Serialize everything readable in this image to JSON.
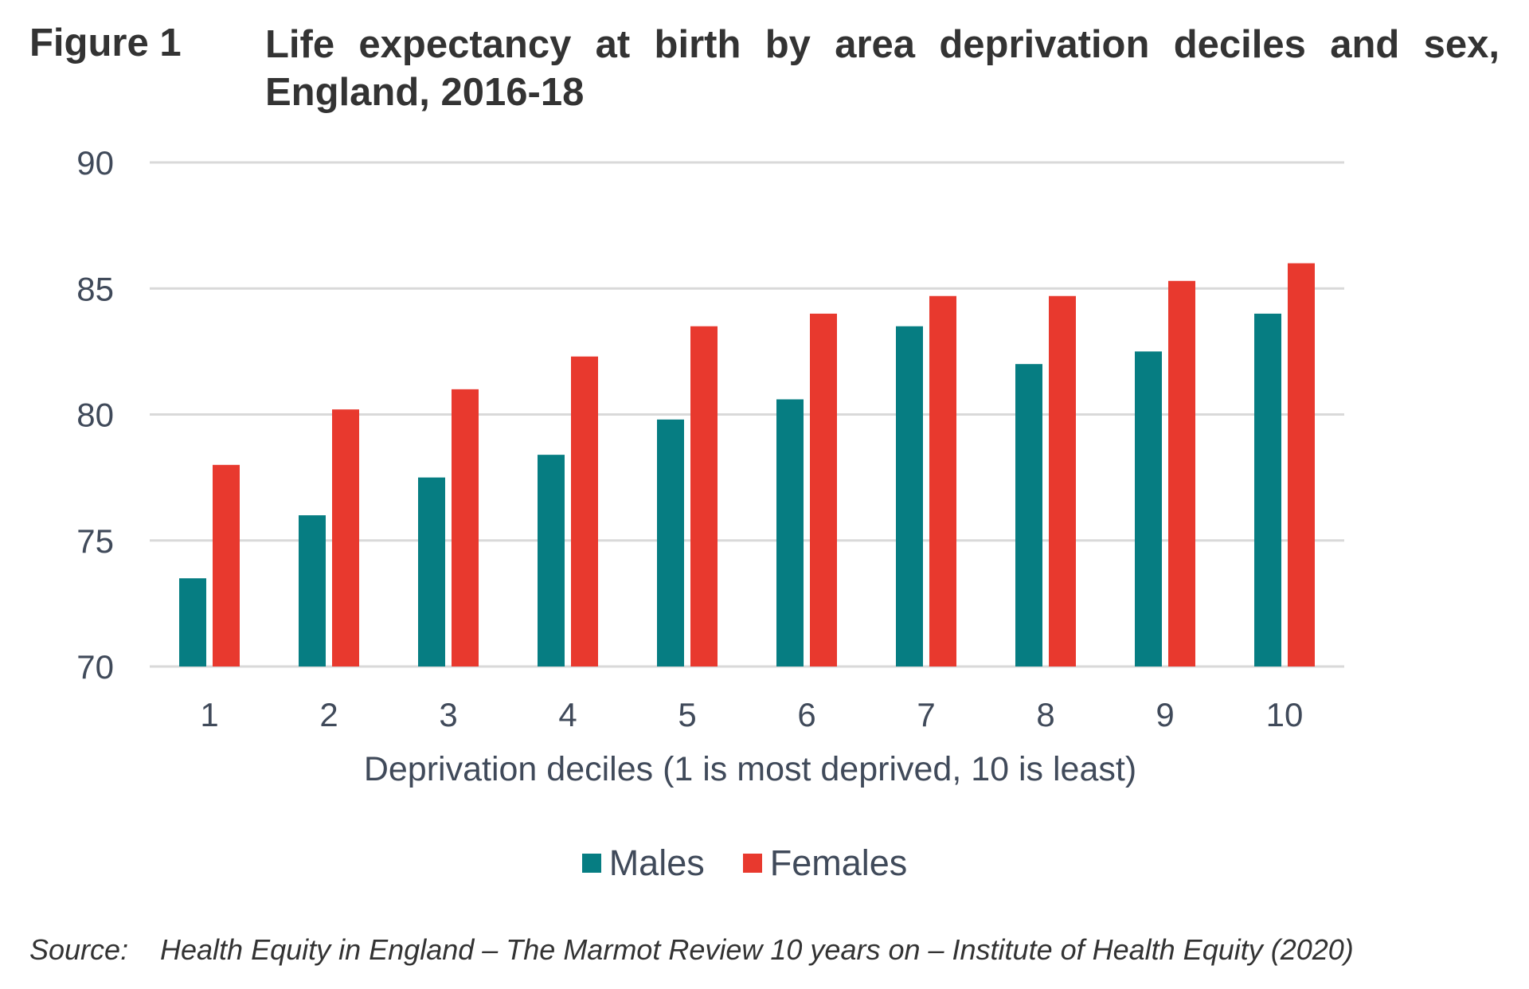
{
  "figure": {
    "label": "Figure 1",
    "title": "Life expectancy at birth by area deprivation deciles and sex, England, 2016-18"
  },
  "source": {
    "label": "Source:",
    "text": "Health Equity in England – The Marmot Review 10 years on – Institute of Health Equity (2020)"
  },
  "chart_data": {
    "type": "bar",
    "title": "Life expectancy at birth by area deprivation deciles and sex, England, 2016-18",
    "xlabel": "Deprivation deciles (1 is most deprived, 10 is least)",
    "ylabel": "",
    "ylim": [
      70,
      90
    ],
    "yticks": [
      "70",
      "75",
      "80",
      "85",
      "90"
    ],
    "categories": [
      "1",
      "2",
      "3",
      "4",
      "5",
      "6",
      "7",
      "8",
      "9",
      "10"
    ],
    "grid": true,
    "legend_position": "bottom",
    "series": [
      {
        "name": "Males",
        "color": "#067d82",
        "values": [
          73.5,
          76.0,
          77.5,
          78.4,
          79.8,
          80.6,
          83.5,
          82.0,
          82.5,
          84.0
        ]
      },
      {
        "name": "Females",
        "color": "#e8392e",
        "values": [
          78.0,
          80.2,
          81.0,
          82.3,
          83.5,
          84.0,
          84.7,
          84.7,
          85.3,
          86.0
        ]
      }
    ],
    "gridline_color": "#d9d9d9"
  }
}
